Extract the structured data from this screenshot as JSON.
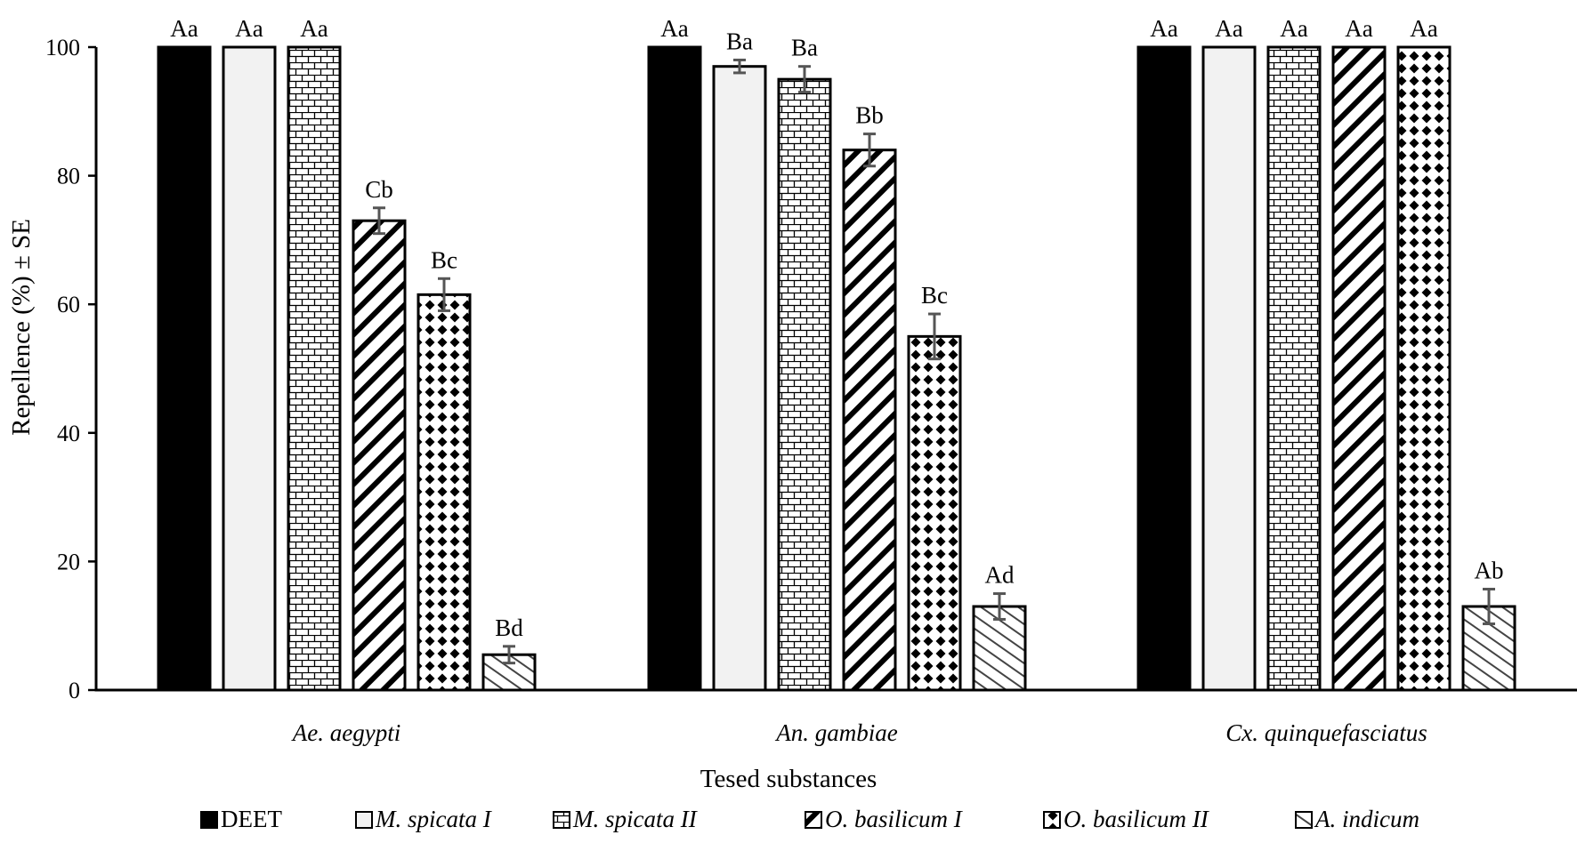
{
  "chart_data": {
    "type": "bar",
    "title": "",
    "xlabel": "Tesed substances",
    "ylabel": "Repellence (%) ± SE",
    "ylim": [
      0,
      100
    ],
    "yticks": [
      0,
      20,
      40,
      60,
      80,
      100
    ],
    "grid": false,
    "legend_position": "bottom",
    "categories": [
      "Ae. aegypti",
      "An. gambiae",
      "Cx. quinquefasciatus"
    ],
    "series": [
      {
        "name": "DEET",
        "pattern": "solid",
        "values": [
          100,
          100,
          100
        ],
        "errors": [
          0,
          0,
          0
        ],
        "labels": [
          "Aa",
          "Aa",
          "Aa"
        ]
      },
      {
        "name": "M. spicata I",
        "pattern": "plain",
        "values": [
          100,
          97,
          100
        ],
        "errors": [
          0,
          1.0,
          0
        ],
        "labels": [
          "Aa",
          "Ba",
          "Aa"
        ]
      },
      {
        "name": "M. spicata II",
        "pattern": "brick",
        "values": [
          100,
          95,
          100
        ],
        "errors": [
          0,
          2.0,
          0
        ],
        "labels": [
          "Aa",
          "Ba",
          "Aa"
        ]
      },
      {
        "name": "O. basilicum I",
        "pattern": "diagonal",
        "values": [
          73,
          84,
          100
        ],
        "errors": [
          2.0,
          2.5,
          0
        ],
        "labels": [
          "Cb",
          "Bb",
          "Aa"
        ]
      },
      {
        "name": "O. basilicum II",
        "pattern": "diamond",
        "values": [
          61.5,
          55,
          100
        ],
        "errors": [
          2.5,
          3.5,
          0
        ],
        "labels": [
          "Bc",
          "Bc",
          "Aa"
        ]
      },
      {
        "name": "A. indicum",
        "pattern": "light-hatch",
        "values": [
          5.5,
          13,
          13
        ],
        "errors": [
          1.3,
          2.0,
          2.7
        ],
        "labels": [
          "Bd",
          "Ad",
          "Ab"
        ]
      }
    ],
    "colors": {
      "ink": "#000000",
      "paper": "#ffffff",
      "light_fill": "#f2f2f2",
      "error_bar": "#555555"
    }
  }
}
